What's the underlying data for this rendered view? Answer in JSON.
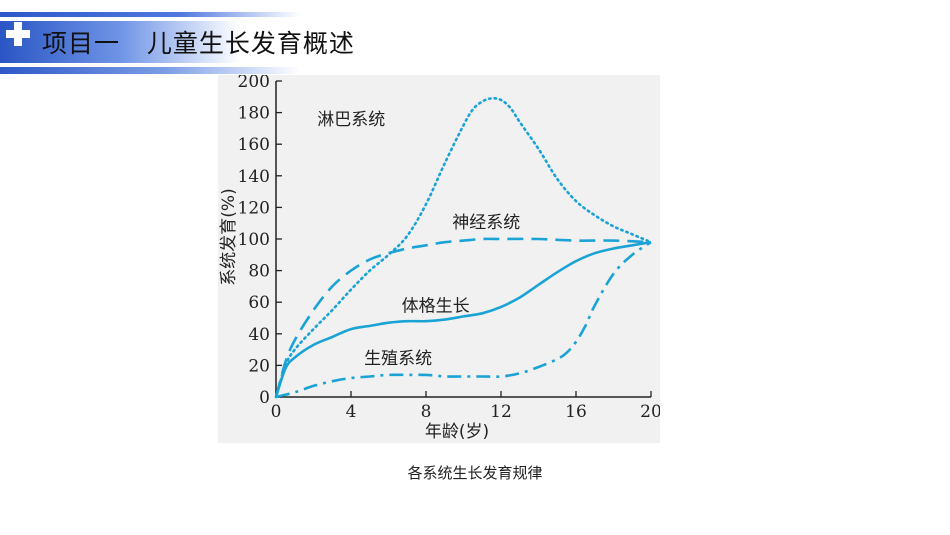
{
  "header": {
    "title": "项目一   儿童生长发育概述"
  },
  "caption": "各系统生长发育规律",
  "chart_data": {
    "type": "line",
    "xlabel": "年龄(岁)",
    "ylabel": "系统发育(%)",
    "xlim": [
      0,
      20
    ],
    "ylim": [
      0,
      200
    ],
    "xticks": [
      0,
      4,
      8,
      12,
      16,
      20
    ],
    "yticks": [
      0,
      20,
      40,
      60,
      80,
      100,
      120,
      140,
      160,
      180,
      200
    ],
    "grid": false,
    "legend": "none",
    "colors": {
      "line": "#1ba3d6",
      "axis": "#222222",
      "panel": "#f1f1f1"
    },
    "series": [
      {
        "name": "淋巴系统",
        "style": "dotted",
        "x": [
          0,
          0.5,
          1,
          2,
          3,
          4,
          5,
          6,
          7,
          8,
          9,
          10,
          10.5,
          11,
          11.5,
          12,
          12.5,
          13,
          14,
          15,
          16,
          17,
          18,
          19,
          20
        ],
        "y": [
          0,
          20,
          30,
          43,
          55,
          68,
          80,
          90,
          102,
          122,
          148,
          172,
          182,
          187,
          189,
          188,
          183,
          174,
          157,
          138,
          124,
          115,
          108,
          103,
          98
        ]
      },
      {
        "name": "神经系统",
        "style": "dashed",
        "x": [
          0,
          0.5,
          1,
          2,
          3,
          4,
          5,
          6,
          7,
          8,
          9,
          10,
          11,
          12,
          14,
          16,
          18,
          20
        ],
        "y": [
          0,
          22,
          36,
          55,
          70,
          80,
          87,
          91,
          94,
          96,
          98,
          99,
          100,
          100,
          100,
          99,
          99,
          98
        ]
      },
      {
        "name": "体格生长",
        "style": "solid",
        "x": [
          0,
          0.5,
          1,
          2,
          3,
          4,
          5,
          6,
          7,
          8,
          9,
          10,
          11,
          12,
          13,
          14,
          15,
          16,
          17,
          18,
          19,
          20
        ],
        "y": [
          0,
          18,
          25,
          33,
          38,
          43,
          45,
          47,
          48,
          48,
          49,
          51,
          53,
          57,
          63,
          71,
          79,
          86,
          91,
          94,
          96,
          98
        ]
      },
      {
        "name": "生殖系统",
        "style": "dashdot",
        "x": [
          0,
          1,
          2,
          3,
          4,
          5,
          6,
          7,
          8,
          9,
          10,
          11,
          12,
          13,
          14,
          15,
          15.5,
          16,
          16.5,
          17,
          18,
          19,
          20
        ],
        "y": [
          0,
          3,
          7,
          10,
          12,
          13,
          14,
          14,
          14,
          13,
          13,
          13,
          13,
          15,
          19,
          24,
          28,
          35,
          45,
          58,
          78,
          90,
          98
        ]
      }
    ],
    "labels": [
      {
        "text": "淋巴系统",
        "x": 2.2,
        "y": 172
      },
      {
        "text": "神经系统",
        "x": 9.4,
        "y": 107
      },
      {
        "text": "体格生长",
        "x": 6.7,
        "y": 54
      },
      {
        "text": "生殖系统",
        "x": 4.7,
        "y": 21
      }
    ]
  }
}
